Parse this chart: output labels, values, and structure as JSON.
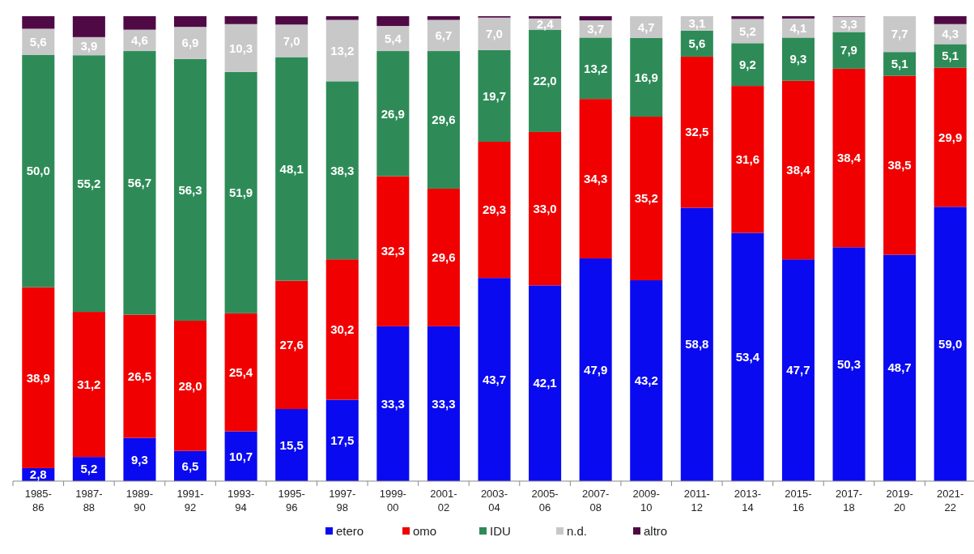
{
  "chart_data": {
    "type": "bar",
    "stacked": true,
    "legend": "bottom",
    "categories": [
      "1985-86",
      "1987-88",
      "1989-90",
      "1991-92",
      "1993-94",
      "1995-96",
      "1997-98",
      "1999-00",
      "2001-02",
      "2003-04",
      "2005-06",
      "2007-08",
      "2009-10",
      "2011-12",
      "2013-14",
      "2015-16",
      "2017-18",
      "2019-20",
      "2021-22"
    ],
    "series": [
      {
        "name": "etero",
        "color": "#0a0af0",
        "values": [
          2.8,
          5.2,
          9.3,
          6.5,
          10.7,
          15.5,
          17.5,
          33.3,
          33.3,
          43.7,
          42.1,
          47.9,
          43.2,
          58.8,
          53.4,
          47.7,
          50.3,
          48.7,
          59.0
        ],
        "value_labels": [
          "2,8",
          "5,2",
          "9,3",
          "6,5",
          "10,7",
          "15,5",
          "17,5",
          "33,3",
          "33,3",
          "43,7",
          "42,1",
          "47,9",
          "43,2",
          "58,8",
          "53,4",
          "47,7",
          "50,3",
          "48,7",
          "59,0"
        ]
      },
      {
        "name": "omo",
        "color": "#f00000",
        "values": [
          38.9,
          31.2,
          26.5,
          28.0,
          25.4,
          27.6,
          30.2,
          32.3,
          29.6,
          29.3,
          33.0,
          34.3,
          35.2,
          32.5,
          31.6,
          38.4,
          38.4,
          38.5,
          29.9
        ],
        "value_labels": [
          "38,9",
          "31,2",
          "26,5",
          "28,0",
          "25,4",
          "27,6",
          "30,2",
          "32,3",
          "29,6",
          "29,3",
          "33,0",
          "34,3",
          "35,2",
          "32,5",
          "31,6",
          "38,4",
          "38,4",
          "38,5",
          "29,9"
        ]
      },
      {
        "name": "IDU",
        "color": "#2e8b57",
        "values": [
          50.0,
          55.2,
          56.7,
          56.3,
          51.9,
          48.1,
          38.3,
          26.9,
          29.6,
          19.7,
          22.0,
          13.2,
          16.9,
          5.6,
          9.2,
          9.3,
          7.9,
          5.1,
          5.1
        ],
        "value_labels": [
          "50,0",
          "55,2",
          "56,7",
          "56,3",
          "51,9",
          "48,1",
          "38,3",
          "26,9",
          "29,6",
          "19,7",
          "22,0",
          "13,2",
          "16,9",
          "5,6",
          "9,2",
          "9,3",
          "7,9",
          "5,1",
          "5,1"
        ]
      },
      {
        "name": "n.d.",
        "color": "#c8c8c8",
        "values": [
          5.6,
          3.9,
          4.6,
          6.9,
          10.3,
          7.0,
          13.2,
          5.4,
          6.7,
          7.0,
          2.4,
          3.7,
          4.7,
          3.1,
          5.2,
          4.1,
          3.3,
          7.7,
          4.3
        ],
        "value_labels": [
          "5,6",
          "3,9",
          "4,6",
          "6,9",
          "10,3",
          "7,0",
          "13,2",
          "5,4",
          "6,7",
          "7,0",
          "2,4",
          "3,7",
          "4,7",
          "3,1",
          "5,2",
          "4,1",
          "3,3",
          "7,7",
          "4,3"
        ]
      },
      {
        "name": "altro",
        "color": "#4f0a45",
        "values": [
          2.7,
          4.5,
          2.9,
          2.3,
          1.7,
          1.8,
          0.8,
          2.1,
          0.8,
          0.3,
          0.5,
          0.9,
          0,
          0,
          0.6,
          0.5,
          0.1,
          0,
          1.7
        ]
      }
    ]
  }
}
